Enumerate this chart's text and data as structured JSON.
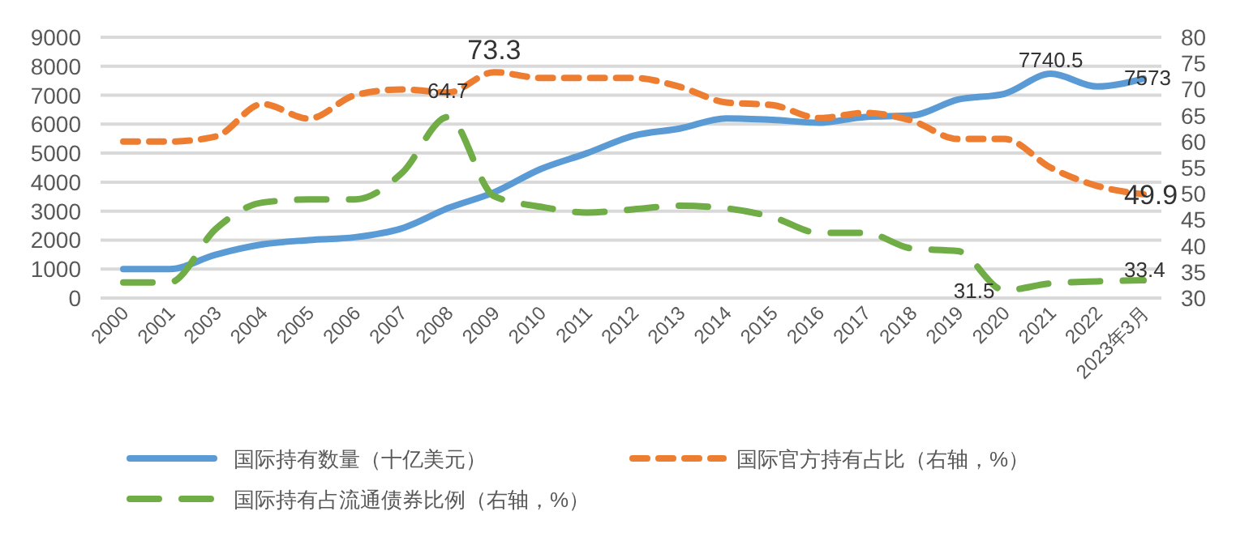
{
  "chart_data": {
    "type": "line",
    "categories": [
      "2000",
      "2001",
      "2003",
      "2004",
      "2005",
      "2006",
      "2007",
      "2008",
      "2009",
      "2010",
      "2011",
      "2012",
      "2013",
      "2014",
      "2015",
      "2016",
      "2017",
      "2018",
      "2019",
      "2020",
      "2021",
      "2022",
      "2023年3月"
    ],
    "series": [
      {
        "name": "国际持有数量（十亿美元）",
        "color": "#5b9bd5",
        "line_style": "solid",
        "values": [
          1000,
          1000,
          1500,
          1850,
          2000,
          2100,
          2400,
          3100,
          3650,
          4450,
          5000,
          5600,
          5850,
          6200,
          6150,
          6050,
          6250,
          6300,
          6850,
          7050,
          7740.5,
          7300,
          7573
        ],
        "value_labels": [
          null,
          null,
          null,
          null,
          null,
          null,
          null,
          null,
          null,
          null,
          null,
          null,
          null,
          null,
          null,
          null,
          null,
          null,
          null,
          null,
          "7740.5",
          null,
          "7573"
        ]
      },
      {
        "name": "国际官方持有占比（右轴，%）",
        "color": "#ed7d31",
        "axis": "y2",
        "line_style": "dashed",
        "values": [
          60,
          60,
          61,
          67.2,
          64.4,
          68.9,
          70,
          69.4,
          73.3,
          72.2,
          72.2,
          72.2,
          70.5,
          67.5,
          67,
          64.5,
          65.5,
          64,
          60.5,
          60.5,
          55,
          51.5,
          49.9
        ],
        "value_labels": [
          null,
          null,
          null,
          null,
          null,
          null,
          null,
          null,
          "73.3",
          null,
          null,
          null,
          null,
          null,
          null,
          null,
          null,
          null,
          null,
          null,
          null,
          null,
          "49.9"
        ]
      },
      {
        "name": "国际持有占流通债券比例（右轴，%）",
        "color": "#70ad47",
        "axis": "y2",
        "line_style": "dashed",
        "values": [
          33,
          33,
          43.3,
          48.3,
          48.9,
          48.9,
          53.9,
          64.7,
          49.5,
          47.5,
          46.4,
          47,
          47.7,
          47.2,
          45.5,
          42.5,
          42.5,
          39.5,
          39,
          31.5,
          32.8,
          33.2,
          33.4
        ],
        "value_labels": [
          null,
          null,
          null,
          null,
          null,
          null,
          null,
          "64.7",
          null,
          null,
          null,
          null,
          null,
          null,
          null,
          null,
          null,
          null,
          null,
          "31.5",
          null,
          null,
          "33.4"
        ]
      }
    ],
    "ylim": [
      0,
      9000
    ],
    "yticks": [
      0,
      1000,
      2000,
      3000,
      4000,
      5000,
      6000,
      7000,
      8000,
      9000
    ],
    "y2lim": [
      30,
      80
    ],
    "y2ticks": [
      30,
      35,
      40,
      45,
      50,
      55,
      60,
      65,
      70,
      75,
      80
    ],
    "grid": "y",
    "legend": "bottom",
    "marker": "none"
  }
}
